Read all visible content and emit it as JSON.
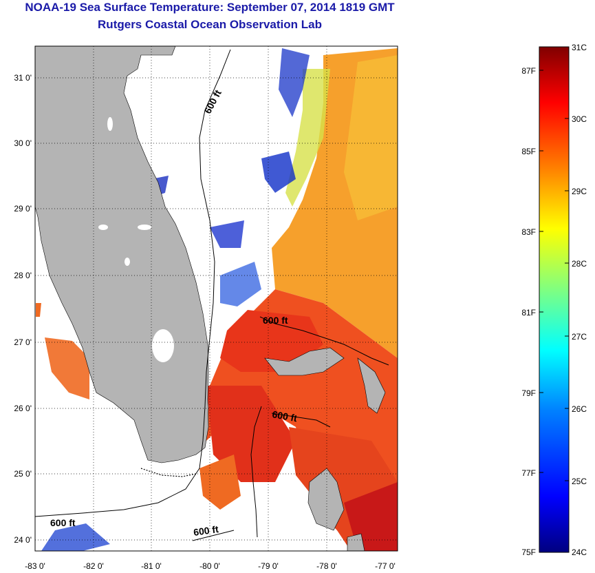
{
  "title": "NOAA-19 Sea Surface Temperature:  September 07, 2014 1819 GMT",
  "subtitle": "Rutgers Coastal Ocean Observation Lab",
  "map": {
    "lon_ticks": [
      "-83 0'",
      "-82 0'",
      "-81 0'",
      "-80 0'",
      "-79 0'",
      "-78 0'",
      "-77 0'"
    ],
    "lat_ticks": [
      "31 0'",
      "30 0'",
      "29 0'",
      "28 0'",
      "27 0'",
      "26 0'",
      "25 0'",
      "24 0'"
    ],
    "contour_labels": [
      "600 ft",
      "600 ft",
      "600 ft",
      "600 ft",
      "600 ft"
    ],
    "land_color": "#b4b4b4",
    "grid": "dotted"
  },
  "colorbar": {
    "celsius_labels": [
      "31C",
      "30C",
      "29C",
      "28C",
      "27C",
      "26C",
      "25C",
      "24C"
    ],
    "fahrenheit_labels": [
      "87F",
      "85F",
      "83F",
      "81F",
      "79F",
      "77F",
      "75F"
    ],
    "colors": [
      "#000080",
      "#0000ff",
      "#0080ff",
      "#00ffff",
      "#80ff80",
      "#ffff00",
      "#ff8000",
      "#ff0000",
      "#800000"
    ]
  }
}
